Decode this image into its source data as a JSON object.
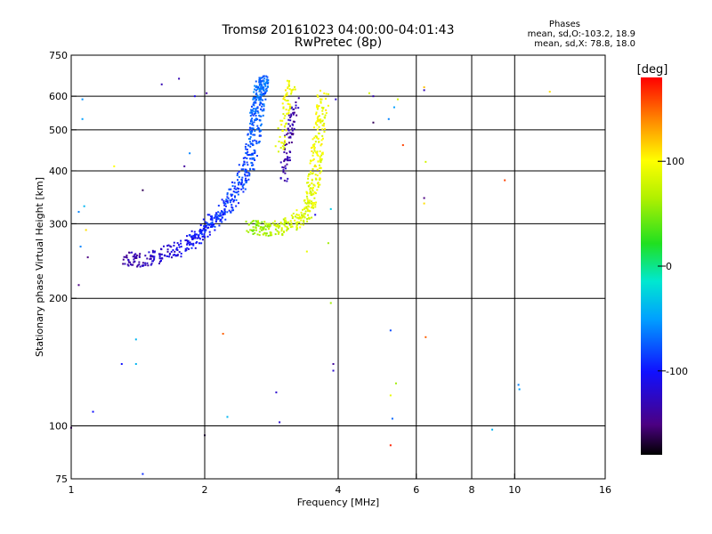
{
  "header": {
    "title_line1": "Tromsø 20161023 04:00:00-04:01:43",
    "title_line2": "RwPretec (8p)",
    "phases_title": "Phases",
    "phases_o": "mean, sd,O:-103.2, 18.9",
    "phases_x": "mean, sd,X:  78.8, 18.0"
  },
  "colorbar": {
    "unit": "[deg]",
    "ticks": [
      "100",
      "0",
      "-100"
    ],
    "tick_values": [
      100,
      0,
      -100
    ],
    "range": [
      -180,
      180
    ]
  },
  "chart_data": {
    "type": "scatter",
    "xlabel": "Frequency [MHz]",
    "ylabel": "Stationary phase Virtual Height [km]",
    "x_scale": "log",
    "y_scale": "log",
    "xlim": [
      1,
      16
    ],
    "ylim": [
      75,
      750
    ],
    "x_ticks": [
      1,
      2,
      4,
      6,
      8,
      10,
      16
    ],
    "x_tick_labels": [
      "1",
      "2",
      "4",
      "6",
      "8",
      "10",
      "16"
    ],
    "y_ticks": [
      75,
      100,
      200,
      300,
      400,
      500,
      600,
      750
    ],
    "y_tick_labels": [
      "75",
      "100",
      "200",
      "300",
      "400",
      "500",
      "600",
      "750"
    ],
    "x_gridlines": [
      2,
      4,
      6,
      8,
      10
    ],
    "y_gridlines": [
      100,
      200,
      300,
      400,
      500,
      600
    ],
    "grid": true,
    "series": [
      {
        "mode": "O",
        "phase_mean": -103.2,
        "trace": {
          "freq": [
            1.3,
            1.45,
            1.6,
            1.75,
            1.9,
            2.0,
            2.1,
            2.2,
            2.3,
            2.4,
            2.5,
            2.55,
            2.6,
            2.62,
            2.64,
            2.66,
            2.68,
            2.7
          ],
          "height": [
            247,
            247,
            252,
            262,
            277,
            290,
            305,
            320,
            340,
            370,
            410,
            450,
            500,
            540,
            580,
            610,
            640,
            650
          ],
          "phase": [
            -140,
            -130,
            -120,
            -110,
            -100,
            -95,
            -90,
            -88,
            -85,
            -82,
            -80,
            -78,
            -76,
            -74,
            -72,
            -70,
            -70,
            -70
          ]
        },
        "purple_band": {
          "freq": [
            3.0,
            3.05,
            3.1,
            3.15,
            3.2
          ],
          "height": [
            380,
            430,
            480,
            530,
            580
          ],
          "phase": [
            -130,
            -135,
            -140,
            -135,
            -130
          ]
        }
      },
      {
        "mode": "X",
        "phase_mean": 78.8,
        "trace": {
          "freq": [
            2.55,
            2.7,
            2.9,
            3.1,
            3.3,
            3.45,
            3.5,
            3.55,
            3.6,
            3.65,
            3.7
          ],
          "height": [
            295,
            292,
            292,
            298,
            310,
            330,
            360,
            400,
            450,
            520,
            600
          ],
          "phase": [
            50,
            60,
            70,
            80,
            85,
            88,
            90,
            92,
            95,
            95,
            95
          ]
        },
        "second_trace": {
          "freq": [
            2.95,
            3.0,
            3.05,
            3.1,
            3.15
          ],
          "height": [
            450,
            500,
            560,
            610,
            650
          ],
          "phase": [
            85,
            90,
            95,
            95,
            90
          ]
        }
      },
      {
        "mode": "scatter",
        "points": [
          {
            "x": 1.06,
            "y": 590,
            "phase": -55
          },
          {
            "x": 1.06,
            "y": 530,
            "phase": -50
          },
          {
            "x": 1.04,
            "y": 320,
            "phase": -60
          },
          {
            "x": 1.07,
            "y": 330,
            "phase": -40
          },
          {
            "x": 1.08,
            "y": 290,
            "phase": 110
          },
          {
            "x": 1.05,
            "y": 265,
            "phase": -60
          },
          {
            "x": 1.09,
            "y": 250,
            "phase": -150
          },
          {
            "x": 1.04,
            "y": 215,
            "phase": -150
          },
          {
            "x": 1.12,
            "y": 108,
            "phase": -100
          },
          {
            "x": 1.0,
            "y": 99,
            "phase": -150
          },
          {
            "x": 1.3,
            "y": 140,
            "phase": -100
          },
          {
            "x": 1.4,
            "y": 160,
            "phase": -40
          },
          {
            "x": 1.4,
            "y": 140,
            "phase": -40
          },
          {
            "x": 1.45,
            "y": 77,
            "phase": -90
          },
          {
            "x": 1.25,
            "y": 410,
            "phase": 100
          },
          {
            "x": 1.45,
            "y": 360,
            "phase": -160
          },
          {
            "x": 1.6,
            "y": 640,
            "phase": -130
          },
          {
            "x": 1.75,
            "y": 660,
            "phase": -130
          },
          {
            "x": 1.9,
            "y": 600,
            "phase": -110
          },
          {
            "x": 2.02,
            "y": 610,
            "phase": -140
          },
          {
            "x": 1.8,
            "y": 410,
            "phase": -140
          },
          {
            "x": 1.85,
            "y": 440,
            "phase": -60
          },
          {
            "x": 2.0,
            "y": 95,
            "phase": -170
          },
          {
            "x": 2.2,
            "y": 165,
            "phase": 150
          },
          {
            "x": 2.25,
            "y": 105,
            "phase": -40
          },
          {
            "x": 2.9,
            "y": 120,
            "phase": -120
          },
          {
            "x": 2.95,
            "y": 102,
            "phase": -120
          },
          {
            "x": 3.4,
            "y": 258,
            "phase": 90
          },
          {
            "x": 3.55,
            "y": 315,
            "phase": -110
          },
          {
            "x": 3.8,
            "y": 270,
            "phase": 60
          },
          {
            "x": 3.85,
            "y": 195,
            "phase": 60
          },
          {
            "x": 3.9,
            "y": 135,
            "phase": -120
          },
          {
            "x": 3.9,
            "y": 140,
            "phase": -140
          },
          {
            "x": 3.85,
            "y": 325,
            "phase": -30
          },
          {
            "x": 3.95,
            "y": 590,
            "phase": -120
          },
          {
            "x": 4.7,
            "y": 610,
            "phase": 80
          },
          {
            "x": 4.8,
            "y": 600,
            "phase": -130
          },
          {
            "x": 4.8,
            "y": 520,
            "phase": -160
          },
          {
            "x": 5.2,
            "y": 530,
            "phase": -60
          },
          {
            "x": 5.35,
            "y": 565,
            "phase": -50
          },
          {
            "x": 5.45,
            "y": 590,
            "phase": 80
          },
          {
            "x": 5.6,
            "y": 460,
            "phase": 160
          },
          {
            "x": 5.25,
            "y": 168,
            "phase": -80
          },
          {
            "x": 5.4,
            "y": 126,
            "phase": 60
          },
          {
            "x": 5.25,
            "y": 118,
            "phase": 90
          },
          {
            "x": 5.3,
            "y": 104,
            "phase": -70
          },
          {
            "x": 5.25,
            "y": 90,
            "phase": 170
          },
          {
            "x": 6.25,
            "y": 630,
            "phase": 120
          },
          {
            "x": 6.25,
            "y": 620,
            "phase": -130
          },
          {
            "x": 6.3,
            "y": 420,
            "phase": 80
          },
          {
            "x": 6.25,
            "y": 345,
            "phase": -150
          },
          {
            "x": 6.25,
            "y": 335,
            "phase": 110
          },
          {
            "x": 6.3,
            "y": 162,
            "phase": 150
          },
          {
            "x": 8.9,
            "y": 98,
            "phase": -40
          },
          {
            "x": 9.5,
            "y": 380,
            "phase": 160
          },
          {
            "x": 10.2,
            "y": 125,
            "phase": -60
          },
          {
            "x": 10.25,
            "y": 122,
            "phase": -50
          },
          {
            "x": 12.0,
            "y": 615,
            "phase": 110
          }
        ]
      }
    ]
  }
}
